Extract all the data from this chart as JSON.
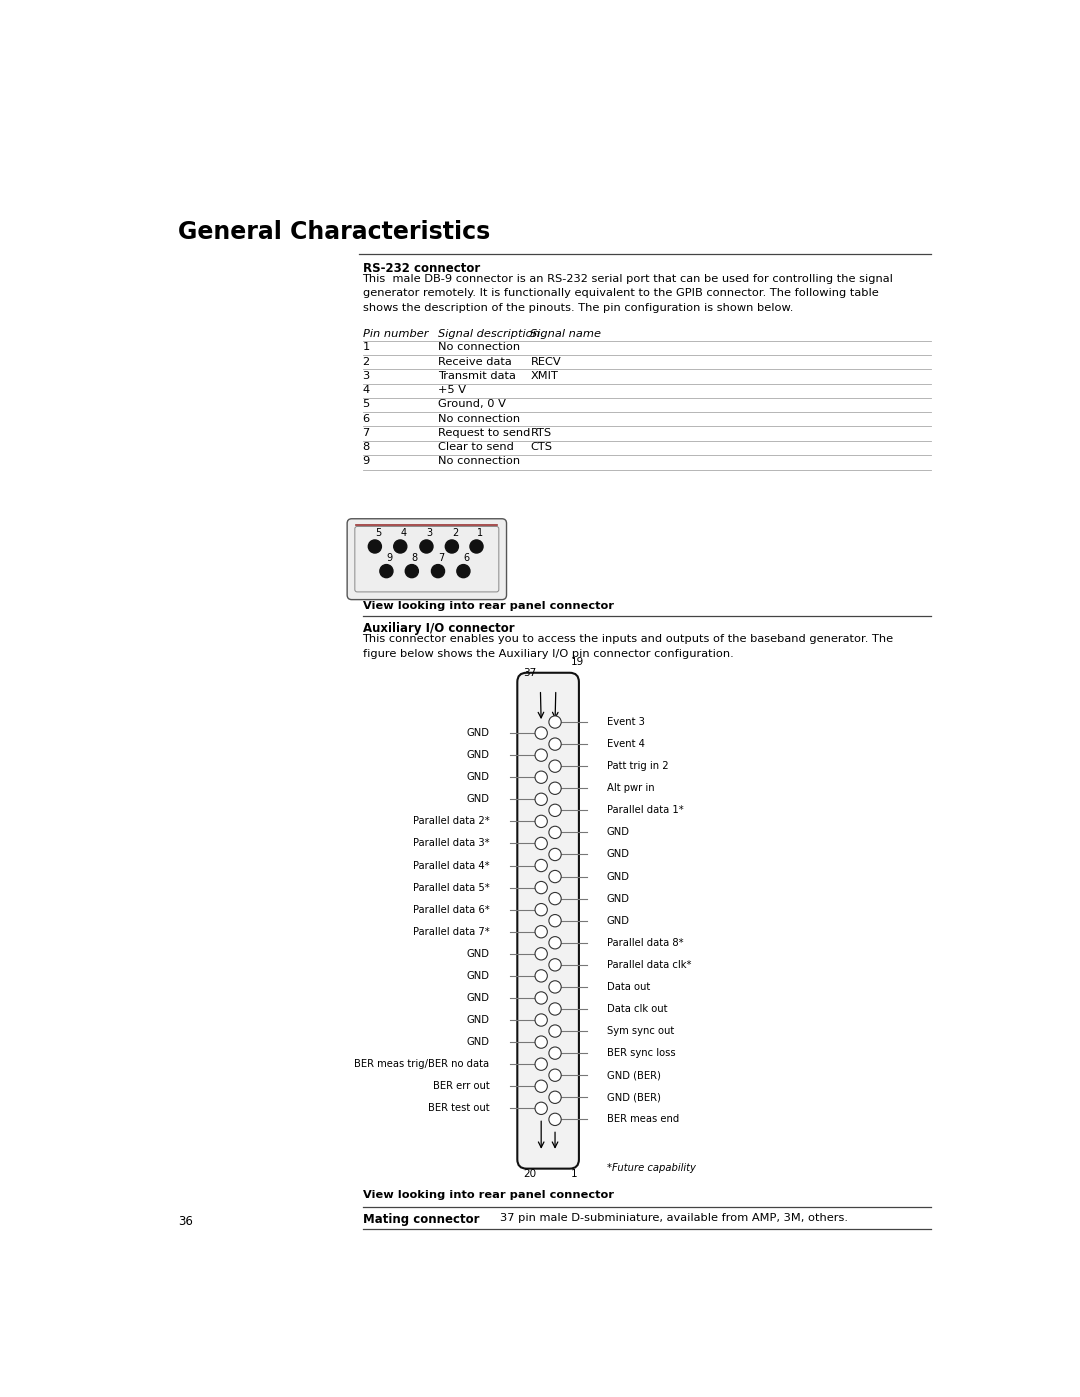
{
  "title": "General Characteristics",
  "page_number": "36",
  "rs232_heading": "RS-232 connector",
  "rs232_desc": "This  male DB-9 connector is an RS-232 serial port that can be used for controlling the signal\ngenerator remotely. It is functionally equivalent to the GPIB connector. The following table\nshows the description of the pinouts. The pin configuration is shown below.",
  "table_headers": [
    "Pin number",
    "Signal description",
    "Signal name"
  ],
  "table_rows": [
    [
      "1",
      "No connection",
      ""
    ],
    [
      "2",
      "Receive data",
      "RECV"
    ],
    [
      "3",
      "Transmit data",
      "XMIT"
    ],
    [
      "4",
      "+5 V",
      ""
    ],
    [
      "5",
      "Ground, 0 V",
      ""
    ],
    [
      "6",
      "No connection",
      ""
    ],
    [
      "7",
      "Request to send",
      "RTS"
    ],
    [
      "8",
      "Clear to send",
      "CTS"
    ],
    [
      "9",
      "No connection",
      ""
    ]
  ],
  "db9_label": "View looking into rear panel connector",
  "aux_heading": "Auxiliary I/O connector",
  "aux_desc": "This connector enables you to access the inputs and outputs of the baseband generator. The\nfigure below shows the Auxiliary I/O pin connector configuration.",
  "aux_left_labels": [
    "GND",
    "GND",
    "GND",
    "GND",
    "Parallel data 2*",
    "Parallel data 3*",
    "Parallel data 4*",
    "Parallel data 5*",
    "Parallel data 6*",
    "Parallel data 7*",
    "GND",
    "GND",
    "GND",
    "GND",
    "GND",
    "BER meas trig/BER no data",
    "BER err out",
    "BER test out"
  ],
  "aux_right_labels": [
    "Event 3",
    "Event 4",
    "Patt trig in 2",
    "Alt pwr in",
    "Parallel data 1*",
    "GND",
    "GND",
    "GND",
    "GND",
    "GND",
    "Parallel data 8*",
    "Parallel data clk*",
    "Data out",
    "Data clk out",
    "Sym sync out",
    "BER sync loss",
    "GND (BER)",
    "GND (BER)",
    "BER meas end"
  ],
  "aux_future": "*Future capability",
  "aux_view_label": "View looking into rear panel connector",
  "mating_label": "Mating connector",
  "mating_desc": "37 pin male D-subminiature, available from AMP, 3M, others.",
  "bg_color": "#ffffff",
  "text_color": "#000000",
  "table_line_color": "#999999"
}
